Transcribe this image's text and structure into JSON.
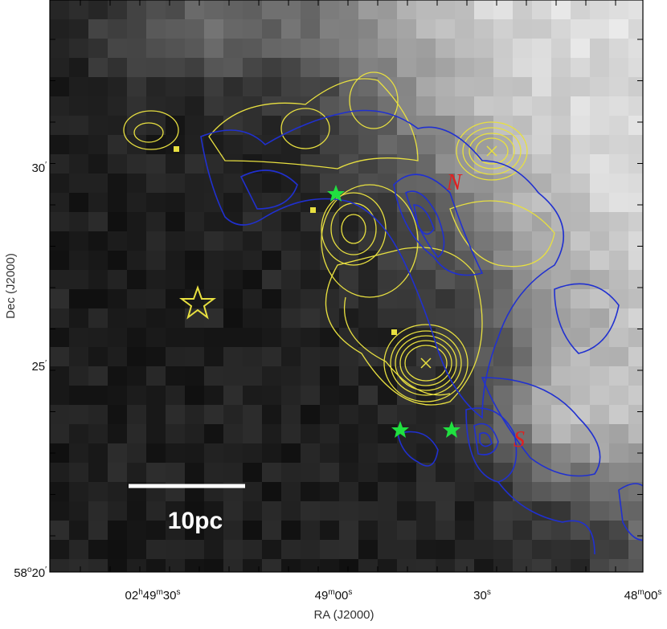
{
  "axes": {
    "x_label": "RA (J2000)",
    "y_label": "Dec (J2000)",
    "x_ticks": [
      [
        "02",
        "h",
        "49",
        "m",
        "30",
        "s"
      ],
      [
        "49",
        "m",
        "00",
        "s"
      ],
      [
        "30",
        "s"
      ],
      [
        "48",
        "m",
        "00",
        "s"
      ]
    ],
    "y_ticks": [
      [
        "58",
        "o",
        "20",
        "′"
      ],
      [
        "25",
        "′"
      ],
      [
        "30",
        "′"
      ]
    ]
  },
  "annotations": {
    "north": "N",
    "south": "S",
    "scale_bar": "10pc"
  }
}
